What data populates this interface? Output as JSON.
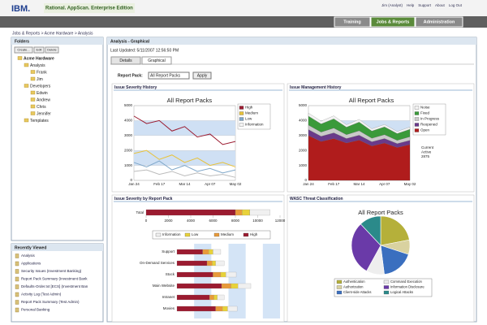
{
  "header": {
    "logo": "IBM.",
    "product": "Rational. AppScan. Enterprise Edition",
    "user_links": [
      "Jim (Analyst)",
      "Help",
      "Support",
      "About",
      "Log Out"
    ],
    "tabs": [
      "Training",
      "Jobs & Reports",
      "Administration"
    ]
  },
  "breadcrumb": "Jobs & Reports > Acme Hardware > Analysis",
  "folders": {
    "title": "Folders",
    "buttons": [
      "Create...",
      "Edit",
      "Delete"
    ],
    "tree": [
      {
        "label": "Acme Hardware",
        "children": [
          {
            "label": "Analysis",
            "children": [
              {
                "label": "Frank"
              },
              {
                "label": "Jim"
              }
            ]
          },
          {
            "label": "Developers",
            "children": [
              {
                "label": "Edwin"
              },
              {
                "label": "Andrew"
              },
              {
                "label": "Chris"
              },
              {
                "label": "Jennifer"
              }
            ]
          },
          {
            "label": "Templates"
          }
        ]
      }
    ]
  },
  "recent": {
    "title": "Recently Viewed",
    "items": [
      "Analysis",
      "Applications",
      "Security Issues (Investment Banking)",
      "Report Pack Summary (Investment Bank",
      "Defaults-Order.txt [ECS] (Investment Ban",
      "Activity Log (Test Admin)",
      "Report Pack Summary (Test Admin)",
      "Personal Banking"
    ]
  },
  "main": {
    "title": "Analysis - Graphical",
    "last_updated": "Last Updated: 5/11/2007 12:56:50 PM",
    "tabs": [
      "Details",
      "Graphical"
    ],
    "report_pack_label": "Report Pack:",
    "report_pack_value": "All Report Packs",
    "apply": "Apply"
  },
  "charts": [
    {
      "type": "line",
      "panel_title": "Issue Severity History",
      "title": "All Report Packs",
      "categories": [
        "Jan 24",
        null,
        "Feb 17",
        null,
        "Mar 14",
        null,
        "Apr 07",
        null,
        "May 02"
      ],
      "ylim": [
        0,
        5000
      ],
      "yticks": [
        0,
        1000,
        2000,
        3000,
        4000,
        5000
      ],
      "grid": true,
      "series": [
        {
          "name": "High",
          "color": "#9b1b30",
          "values": [
            4300,
            3800,
            4000,
            3300,
            3600,
            2900,
            3100,
            2400,
            2600
          ]
        },
        {
          "name": "Medium",
          "color": "#e8c23a",
          "values": [
            1800,
            2000,
            1400,
            1700,
            1200,
            1500,
            1000,
            1200,
            900
          ]
        },
        {
          "name": "Low",
          "color": "#7fa7c9",
          "values": [
            1200,
            900,
            1300,
            700,
            1000,
            600,
            800,
            500,
            700
          ]
        },
        {
          "name": "Information",
          "color": "#f4f4f4",
          "values": [
            600,
            700,
            400,
            600,
            300,
            500,
            300,
            400,
            200
          ]
        }
      ]
    },
    {
      "type": "area",
      "panel_title": "Issue Management History",
      "title": "All Report Packs",
      "categories": [
        "Jan 24",
        null,
        "Feb 17",
        null,
        "Mar 14",
        null,
        "Apr 07",
        null,
        "May 02"
      ],
      "ylim": [
        0,
        5000
      ],
      "yticks": [
        0,
        1000,
        2000,
        3000,
        4000,
        5000
      ],
      "grid": true,
      "annotation": [
        "Current",
        "Active",
        "2875"
      ],
      "series": [
        {
          "name": "Open",
          "color": "#b01c1c",
          "values": [
            3000,
            2600,
            2800,
            2500,
            2700,
            2300,
            2500,
            2200,
            2400
          ]
        },
        {
          "name": "Reopened",
          "color": "#6a3a8a",
          "values": [
            400,
            350,
            380,
            300,
            320,
            280,
            300,
            260,
            280
          ]
        },
        {
          "name": "In Progress",
          "color": "#c9c9c9",
          "values": [
            300,
            280,
            320,
            260,
            300,
            240,
            260,
            220,
            240
          ]
        },
        {
          "name": "Fixed",
          "color": "#3a9a3a",
          "values": [
            600,
            550,
            620,
            500,
            580,
            480,
            520,
            450,
            500
          ]
        },
        {
          "name": "Noise",
          "color": "#f2f2f2",
          "values": [
            200,
            180,
            200,
            160,
            180,
            150,
            160,
            140,
            150
          ]
        }
      ]
    },
    {
      "type": "bar",
      "panel_title": "Issue Severity by Report Pack",
      "total_label": "Total",
      "xlim": [
        0,
        12000
      ],
      "xticks": [
        0,
        2000,
        4000,
        6000,
        8000,
        10000,
        12000
      ],
      "categories": [
        "Support",
        "On-Demand Services",
        "Stock",
        "Main Website",
        "Intranet",
        "Movies"
      ],
      "total": [
        8000,
        600,
        700,
        1800
      ],
      "series": [
        {
          "name": "High",
          "color": "#9b1b30",
          "values": [
            3000,
            3500,
            4200,
            5200,
            3800,
            4500
          ]
        },
        {
          "name": "Medium",
          "color": "#e89a3a",
          "values": [
            700,
            600,
            900,
            1100,
            500,
            800
          ]
        },
        {
          "name": "Low",
          "color": "#e8d23a",
          "values": [
            500,
            400,
            600,
            800,
            400,
            600
          ]
        },
        {
          "name": "Information",
          "color": "#f0f0f0",
          "values": [
            900,
            1000,
            1200,
            1500,
            800,
            1100
          ]
        }
      ],
      "legend_order": [
        "Information",
        "Low",
        "Medium",
        "High"
      ]
    },
    {
      "type": "pie",
      "panel_title": "WASC Threat Classification",
      "title": "All Report Packs",
      "categories": [
        "Authentication",
        "Authorization",
        "Client-side Attacks",
        "Command Execution",
        "Information Disclosure",
        "Logical Attacks"
      ],
      "values": [
        22,
        8,
        18,
        10,
        30,
        12
      ],
      "colors": [
        "#b5b03a",
        "#d9d2a0",
        "#3a6fbf",
        "#eeeeee",
        "#6a3aa8",
        "#2b8a8a"
      ]
    }
  ]
}
